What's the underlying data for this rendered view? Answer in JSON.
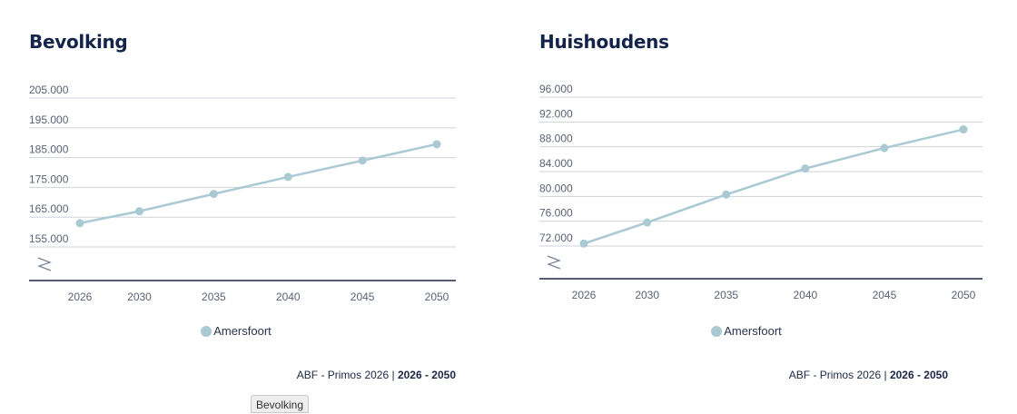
{
  "colors": {
    "series": "#a9cad3",
    "axis": "#1a2744",
    "grid": "#cfd3d8",
    "text": "#5a6275"
  },
  "chart_data": [
    {
      "type": "line",
      "title": "Bevolking",
      "x": [
        2026,
        2030,
        2035,
        2040,
        2045,
        2050
      ],
      "series": [
        {
          "name": "Amersfoort",
          "values": [
            163000,
            167000,
            172800,
            178500,
            184000,
            189500
          ]
        }
      ],
      "yticks": [
        "155.000",
        "165.000",
        "175.000",
        "185.000",
        "195.000",
        "205.000"
      ],
      "yticks_values": [
        155000,
        165000,
        175000,
        185000,
        195000,
        205000
      ],
      "ylim": [
        155000,
        205000
      ],
      "axis_break": true,
      "grid": true,
      "legend": "bottom-center",
      "source": "ABF - Primos 2026",
      "range": "2026 - 2050"
    },
    {
      "type": "line",
      "title": "Huishoudens",
      "x": [
        2026,
        2030,
        2035,
        2040,
        2045,
        2050
      ],
      "series": [
        {
          "name": "Amersfoort",
          "values": [
            72400,
            75800,
            80300,
            84500,
            87800,
            90800
          ]
        }
      ],
      "yticks": [
        "72.000",
        "76.000",
        "80.000",
        "84.000",
        "88.000",
        "92.000",
        "96.000"
      ],
      "yticks_values": [
        72000,
        76000,
        80000,
        84000,
        88000,
        92000,
        96000
      ],
      "ylim": [
        72000,
        96000
      ],
      "axis_break": true,
      "grid": true,
      "legend": "bottom-center",
      "source": "ABF - Primos 2026",
      "range": "2026 - 2050"
    }
  ],
  "tooltip": {
    "label": "Bevolking"
  }
}
